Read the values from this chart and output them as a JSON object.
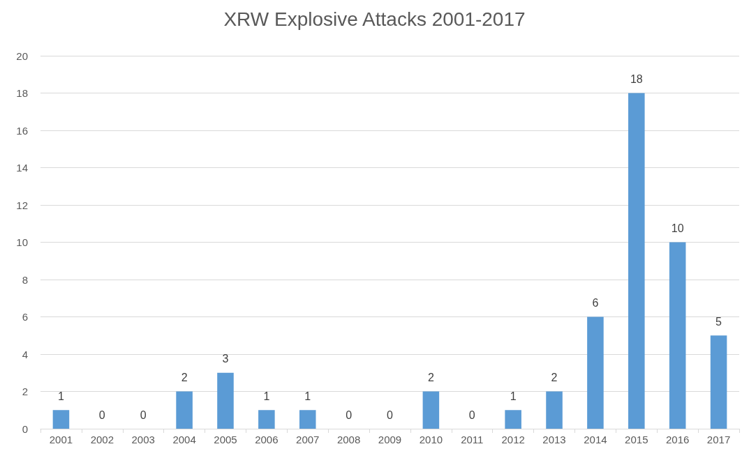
{
  "chart_data": {
    "type": "bar",
    "title": "XRW Explosive Attacks 2001-2017",
    "categories": [
      "2001",
      "2002",
      "2003",
      "2004",
      "2005",
      "2006",
      "2007",
      "2008",
      "2009",
      "2010",
      "2011",
      "2012",
      "2013",
      "2014",
      "2015",
      "2016",
      "2017"
    ],
    "values": [
      1,
      0,
      0,
      2,
      3,
      1,
      1,
      0,
      0,
      2,
      0,
      1,
      2,
      6,
      18,
      10,
      5
    ],
    "color": "#5b9bd5",
    "ylim": [
      0,
      20
    ],
    "yticks": [
      0,
      2,
      4,
      6,
      8,
      10,
      12,
      14,
      16,
      18,
      20
    ],
    "grid": "y",
    "data_labels": true
  }
}
